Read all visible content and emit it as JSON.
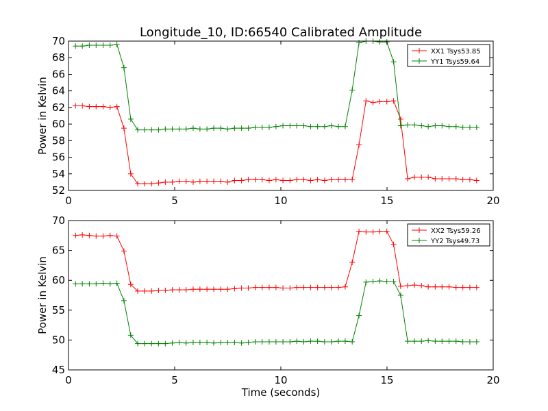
{
  "figure": {
    "title": "Longitude_10, ID:66540 Calibrated Amplitude",
    "xlabel": "Time (seconds)"
  },
  "chart_data": [
    {
      "type": "line",
      "title": "Longitude_10, ID:66540 Calibrated Amplitude",
      "xlabel": "",
      "ylabel": "Power in Kelvin",
      "xlim": [
        0,
        20
      ],
      "ylim": [
        52,
        70
      ],
      "xticks": [
        0,
        5,
        10,
        15,
        20
      ],
      "yticks": [
        52,
        54,
        56,
        58,
        60,
        62,
        64,
        66,
        68,
        70
      ],
      "grid": false,
      "legend": "top-right",
      "x": [
        0.33,
        0.65,
        0.98,
        1.3,
        1.63,
        1.96,
        2.28,
        2.61,
        2.93,
        3.26,
        3.58,
        3.91,
        4.24,
        4.56,
        4.89,
        5.21,
        5.54,
        5.87,
        6.19,
        6.52,
        6.84,
        7.17,
        7.49,
        7.82,
        8.15,
        8.47,
        8.8,
        9.12,
        9.45,
        9.77,
        10.1,
        10.43,
        10.75,
        11.08,
        11.4,
        11.73,
        12.06,
        12.38,
        12.71,
        13.03,
        13.36,
        13.68,
        14.01,
        14.34,
        14.66,
        14.99,
        15.31,
        15.64,
        15.97,
        16.29,
        16.62,
        16.94,
        17.27,
        17.59,
        17.92,
        18.25,
        18.57,
        18.9,
        19.22
      ],
      "series": [
        {
          "name": "XX1 Tsys53.85",
          "color": "#ff0000",
          "values": [
            62.2,
            62.2,
            62.1,
            62.1,
            62.1,
            62.0,
            62.1,
            59.5,
            54.0,
            52.8,
            52.8,
            52.8,
            52.9,
            53.0,
            53.0,
            53.1,
            53.1,
            53.0,
            53.1,
            53.1,
            53.1,
            53.1,
            53.0,
            53.2,
            53.2,
            53.3,
            53.3,
            53.3,
            53.2,
            53.3,
            53.2,
            53.2,
            53.3,
            53.3,
            53.2,
            53.3,
            53.2,
            53.3,
            53.3,
            53.3,
            53.3,
            57.5,
            62.8,
            62.6,
            62.7,
            62.7,
            62.8,
            60.6,
            53.4,
            53.6,
            53.6,
            53.6,
            53.4,
            53.4,
            53.4,
            53.4,
            53.3,
            53.3,
            53.2
          ]
        },
        {
          "name": "YY1 Tsys59.64",
          "color": "#008000",
          "values": [
            69.4,
            69.4,
            69.5,
            69.5,
            69.5,
            69.5,
            69.6,
            66.8,
            60.6,
            59.3,
            59.3,
            59.3,
            59.3,
            59.4,
            59.4,
            59.4,
            59.4,
            59.5,
            59.4,
            59.4,
            59.5,
            59.5,
            59.4,
            59.5,
            59.5,
            59.5,
            59.6,
            59.6,
            59.6,
            59.7,
            59.8,
            59.8,
            59.8,
            59.8,
            59.7,
            59.7,
            59.7,
            59.8,
            59.7,
            59.7,
            64.1,
            69.8,
            70.0,
            70.0,
            69.9,
            69.9,
            67.5,
            59.8,
            59.9,
            59.9,
            59.8,
            59.7,
            59.8,
            59.8,
            59.7,
            59.7,
            59.6,
            59.6,
            59.6
          ]
        }
      ]
    },
    {
      "type": "line",
      "title": "",
      "xlabel": "Time (seconds)",
      "ylabel": "Power in Kelvin",
      "xlim": [
        0,
        20
      ],
      "ylim": [
        45,
        70
      ],
      "xticks": [
        0,
        5,
        10,
        15,
        20
      ],
      "yticks": [
        45,
        50,
        55,
        60,
        65,
        70
      ],
      "grid": false,
      "legend": "top-right",
      "x": [
        0.33,
        0.65,
        0.98,
        1.3,
        1.63,
        1.96,
        2.28,
        2.61,
        2.93,
        3.26,
        3.58,
        3.91,
        4.24,
        4.56,
        4.89,
        5.21,
        5.54,
        5.87,
        6.19,
        6.52,
        6.84,
        7.17,
        7.49,
        7.82,
        8.15,
        8.47,
        8.8,
        9.12,
        9.45,
        9.77,
        10.1,
        10.43,
        10.75,
        11.08,
        11.4,
        11.73,
        12.06,
        12.38,
        12.71,
        13.03,
        13.36,
        13.68,
        14.01,
        14.34,
        14.66,
        14.99,
        15.31,
        15.64,
        15.97,
        16.29,
        16.62,
        16.94,
        17.27,
        17.59,
        17.92,
        18.25,
        18.57,
        18.9,
        19.22
      ],
      "series": [
        {
          "name": "XX2 Tsys59.26",
          "color": "#ff0000",
          "values": [
            67.5,
            67.6,
            67.5,
            67.4,
            67.4,
            67.5,
            67.4,
            64.9,
            59.3,
            58.2,
            58.2,
            58.2,
            58.3,
            58.3,
            58.4,
            58.4,
            58.4,
            58.5,
            58.5,
            58.5,
            58.5,
            58.5,
            58.5,
            58.6,
            58.7,
            58.7,
            58.8,
            58.8,
            58.8,
            58.8,
            58.7,
            58.7,
            58.8,
            58.8,
            58.8,
            58.8,
            58.8,
            58.8,
            58.8,
            58.9,
            63.0,
            68.2,
            68.1,
            68.1,
            68.2,
            68.2,
            66.0,
            59.0,
            59.1,
            59.2,
            59.1,
            58.9,
            58.9,
            58.9,
            58.9,
            58.8,
            58.8,
            58.8,
            58.8
          ]
        },
        {
          "name": "YY2 Tsys49.73",
          "color": "#008000",
          "values": [
            59.4,
            59.4,
            59.4,
            59.4,
            59.5,
            59.4,
            59.5,
            56.6,
            50.8,
            49.4,
            49.4,
            49.4,
            49.4,
            49.4,
            49.5,
            49.6,
            49.5,
            49.6,
            49.6,
            49.6,
            49.5,
            49.6,
            49.6,
            49.6,
            49.5,
            49.6,
            49.7,
            49.7,
            49.7,
            49.7,
            49.7,
            49.7,
            49.8,
            49.7,
            49.8,
            49.8,
            49.7,
            49.7,
            49.8,
            49.8,
            49.7,
            54.1,
            59.7,
            59.8,
            59.9,
            59.8,
            59.8,
            57.5,
            49.8,
            49.8,
            49.8,
            49.9,
            49.8,
            49.8,
            49.8,
            49.8,
            49.7,
            49.7,
            49.7
          ]
        }
      ]
    }
  ]
}
